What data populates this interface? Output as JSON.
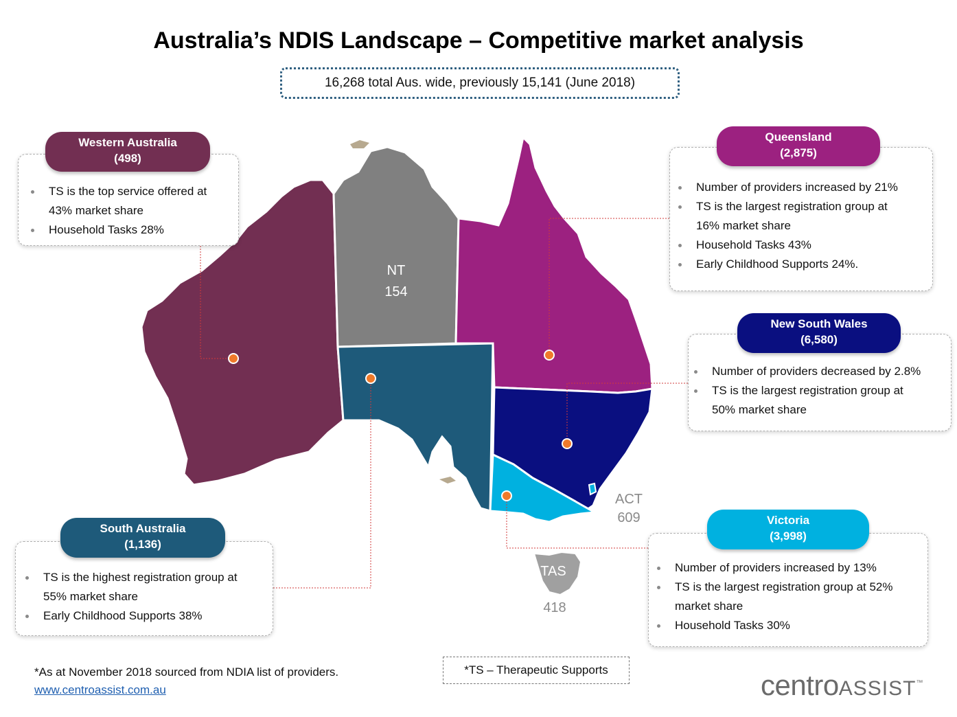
{
  "title": "Australia’s NDIS Landscape – Competitive market analysis",
  "subtitle": "16,268 total Aus. wide, previously 15,141 (June 2018)",
  "colors": {
    "wa": "#722f52",
    "nt": "#808080",
    "qld": "#9c2180",
    "sa": "#1e5a7a",
    "nsw": "#0a0f80",
    "vic": "#00b1e0",
    "tas": "#a0a0a0",
    "marker": "#f07a2a",
    "leader": "#d23a3a"
  },
  "states": {
    "wa": {
      "name": "Western Australia",
      "count": "(498)",
      "bullets": [
        "TS is the top service offered at",
        "43% market share",
        "Household Tasks 28%"
      ]
    },
    "qld": {
      "name": "Queensland",
      "count": "(2,875)",
      "bullets": [
        "Number of providers increased by 21%",
        "TS is the largest registration group at",
        "16% market share",
        "Household Tasks 43%",
        "Early Childhood Supports 24%."
      ]
    },
    "nsw": {
      "name": "New South Wales",
      "count": "(6,580)",
      "bullets": [
        "Number of providers decreased by 2.8%",
        "TS is the largest registration group at",
        "50% market share"
      ]
    },
    "sa": {
      "name": "South Australia",
      "count": "(1,136)",
      "bullets": [
        "TS is the highest registration group at",
        "55% market share",
        "Early Childhood Supports 38%"
      ]
    },
    "vic": {
      "name": "Victoria",
      "count": "(3,998)",
      "bullets": [
        "Number of providers increased by 13%",
        "TS is the largest registration group at 52%",
        "market share",
        "Household Tasks 30%"
      ]
    }
  },
  "map_labels": {
    "nt_name": "NT",
    "nt_count": "154",
    "act_name": "ACT",
    "act_count": "609",
    "tas_name": "TAS",
    "tas_count": "418"
  },
  "footnote": {
    "source": "*As at November 2018 sourced from NDIA list of providers.",
    "link": "www.centroassist.com.au"
  },
  "ts_note": "*TS – Therapeutic Supports",
  "logo": {
    "part1": "centro",
    "part2": "ASSIST",
    "tm": "™"
  }
}
